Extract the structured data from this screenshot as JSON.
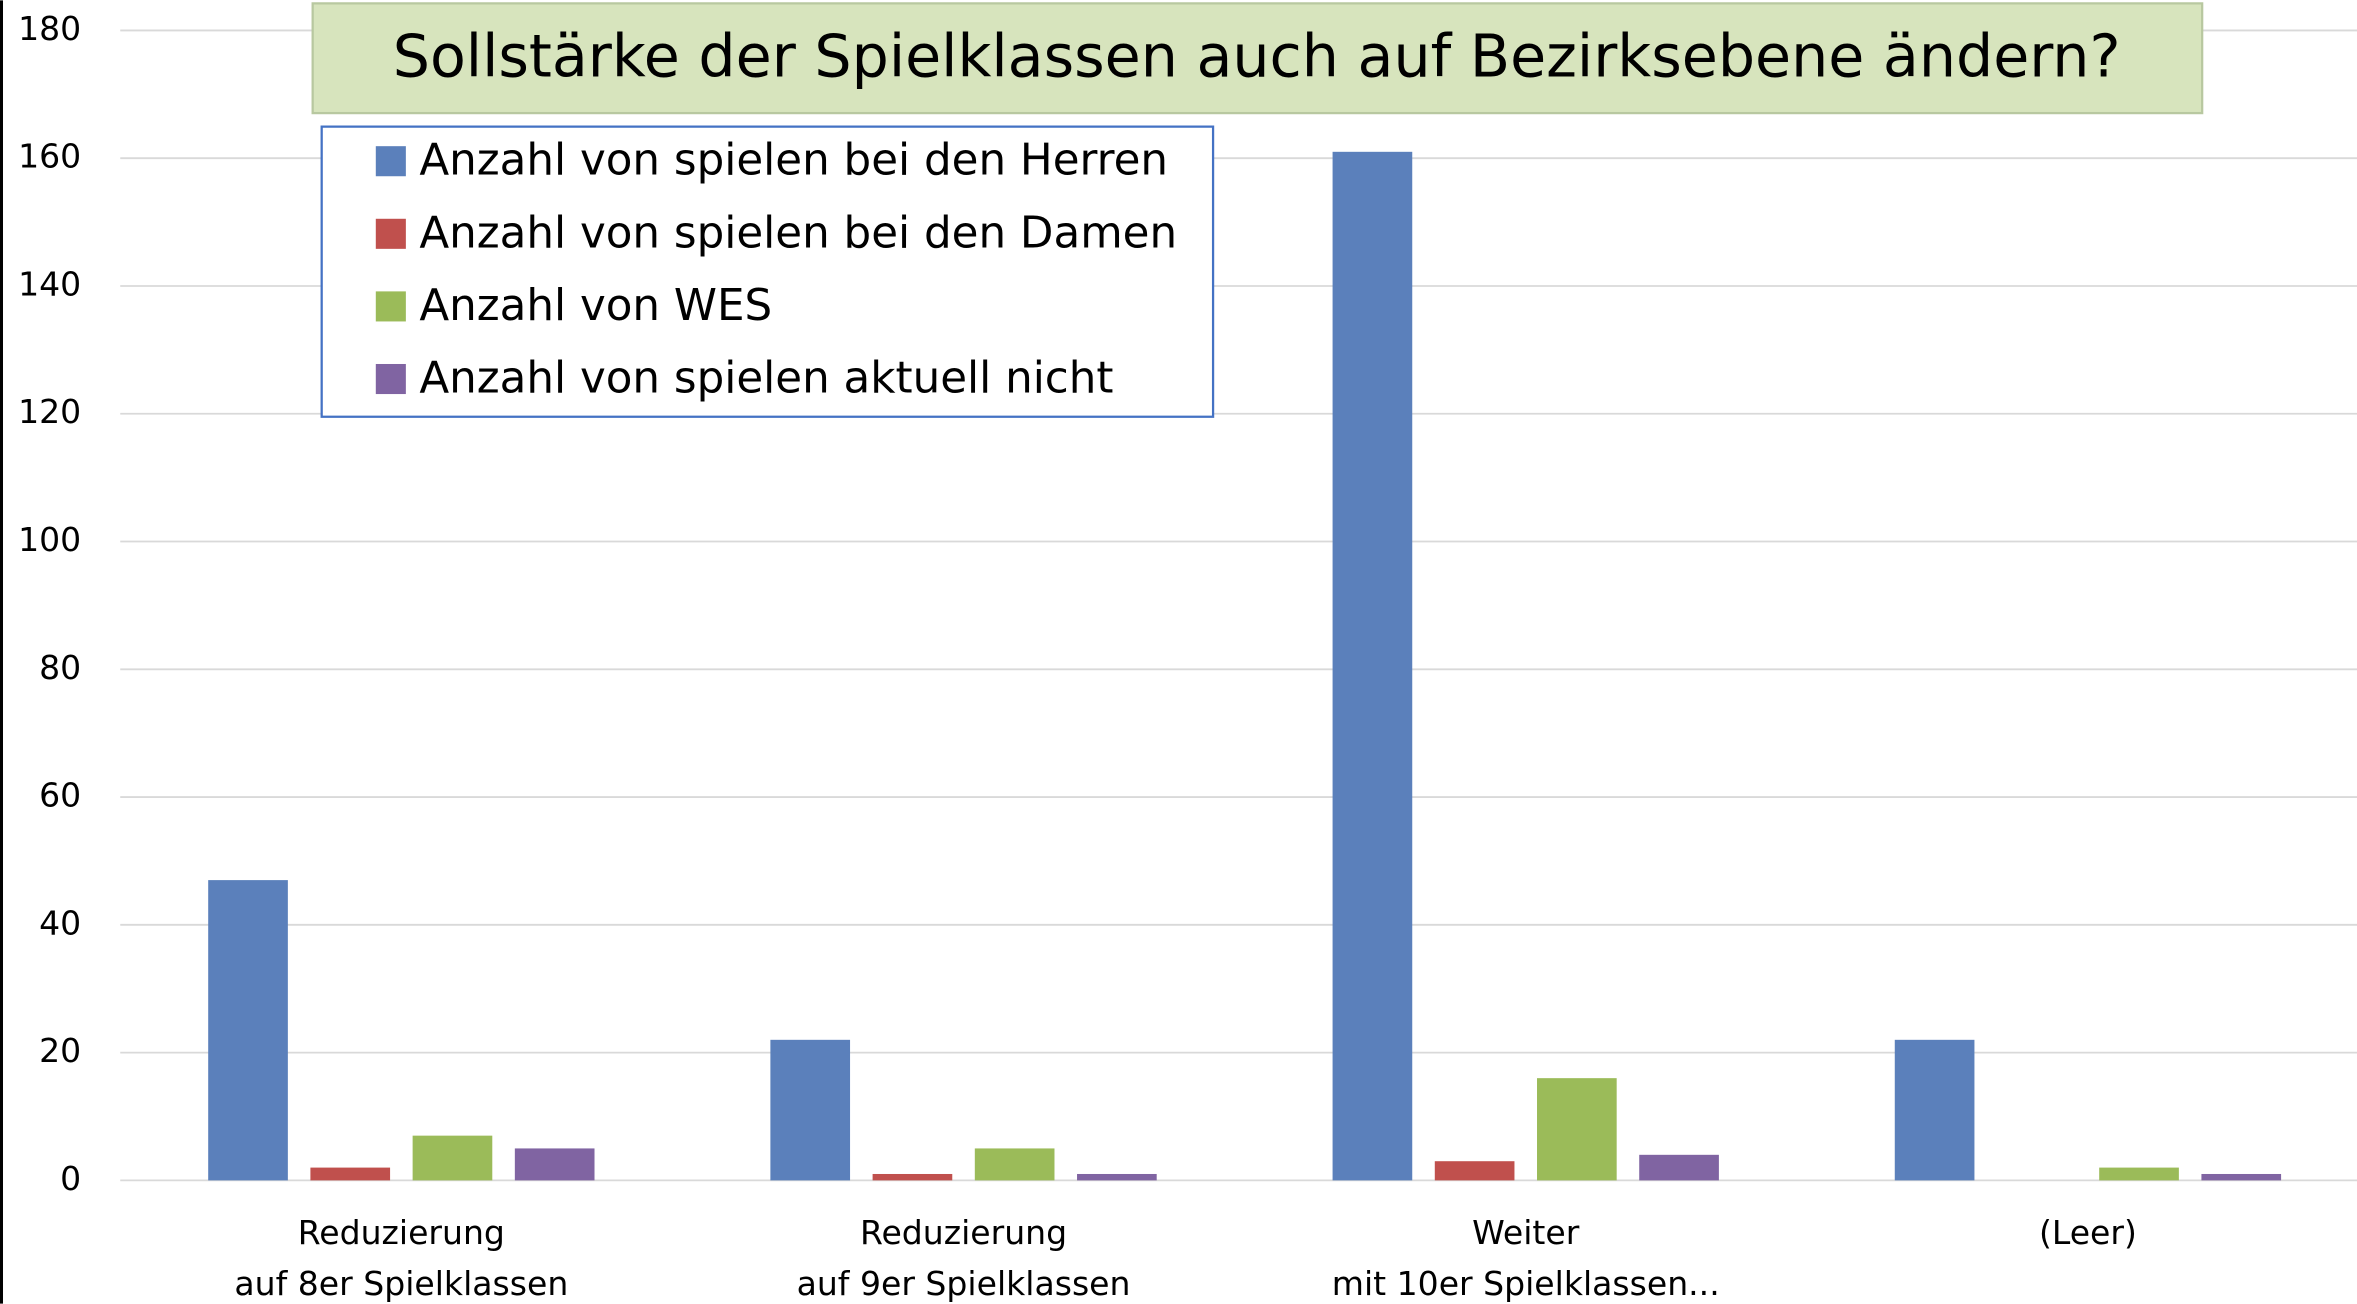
{
  "chart_data": {
    "type": "bar",
    "title": "Sollstärke der Spielklassen auch auf Bezirksebene ändern?",
    "categories": [
      [
        "Reduzierung",
        "auf 8er Spielklassen"
      ],
      [
        "Reduzierung",
        "auf 9er Spielklassen"
      ],
      [
        "Weiter",
        "mit 10er Spielklassen..."
      ],
      [
        "(Leer)"
      ]
    ],
    "series": [
      {
        "name": "Anzahl von spielen bei den Herren",
        "color": "#5b80bb",
        "values": [
          47,
          22,
          161,
          22
        ]
      },
      {
        "name": "Anzahl von spielen bei den Damen",
        "color": "#c0504d",
        "values": [
          2,
          1,
          3,
          0
        ]
      },
      {
        "name": "Anzahl von WES",
        "color": "#9bbb59",
        "values": [
          7,
          5,
          16,
          2
        ]
      },
      {
        "name": "Anzahl von spielen aktuell nicht",
        "color": "#8064a2",
        "values": [
          5,
          1,
          4,
          1
        ]
      }
    ],
    "ylim": [
      0,
      180
    ],
    "yticks": [
      0,
      20,
      40,
      60,
      80,
      100,
      120,
      140,
      160,
      180
    ],
    "grid": true,
    "legend": "top-left"
  }
}
